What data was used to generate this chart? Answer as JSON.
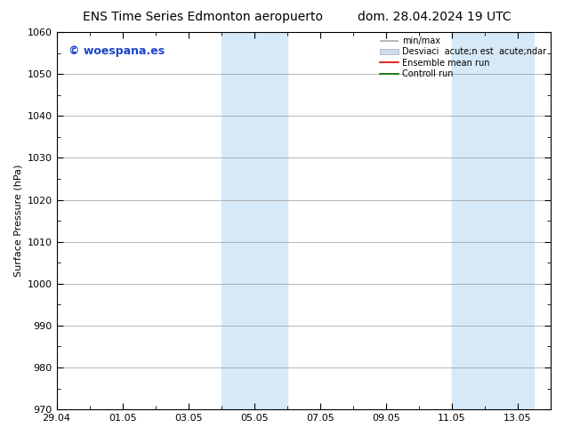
{
  "title_left": "ENS Time Series Edmonton aeropuerto",
  "title_right": "dom. 28.04.2024 19 UTC",
  "ylabel": "Surface Pressure (hPa)",
  "ylim": [
    970,
    1060
  ],
  "yticks": [
    970,
    980,
    990,
    1000,
    1010,
    1020,
    1030,
    1040,
    1050,
    1060
  ],
  "xlim": [
    0,
    15
  ],
  "xtick_labels": [
    "29.04",
    "01.05",
    "03.05",
    "05.05",
    "07.05",
    "09.05",
    "11.05",
    "13.05"
  ],
  "xtick_positions": [
    0,
    2,
    4,
    6,
    8,
    10,
    12,
    14
  ],
  "band1_x0": 5.0,
  "band1_x1": 7.0,
  "band2_x0": 12.0,
  "band2_x1": 14.5,
  "band_color": "#d6e9f8",
  "watermark_text": "© woespana.es",
  "watermark_color": "#1a44cc",
  "background_color": "#ffffff",
  "plot_bg_color": "#ffffff",
  "grid_color": "#999999",
  "legend_label_minmax": "min/max",
  "legend_label_std": "Desviaci  acute;n est  acute;ndar",
  "legend_label_ensemble": "Ensemble mean run",
  "legend_label_control": "Controll run",
  "legend_color_minmax": "#aaaaaa",
  "legend_color_std": "#ccddf0",
  "legend_color_ensemble": "#dd0000",
  "legend_color_control": "#006600",
  "title_fontsize": 10,
  "axis_label_fontsize": 8,
  "tick_fontsize": 8,
  "legend_fontsize": 7,
  "watermark_fontsize": 9
}
